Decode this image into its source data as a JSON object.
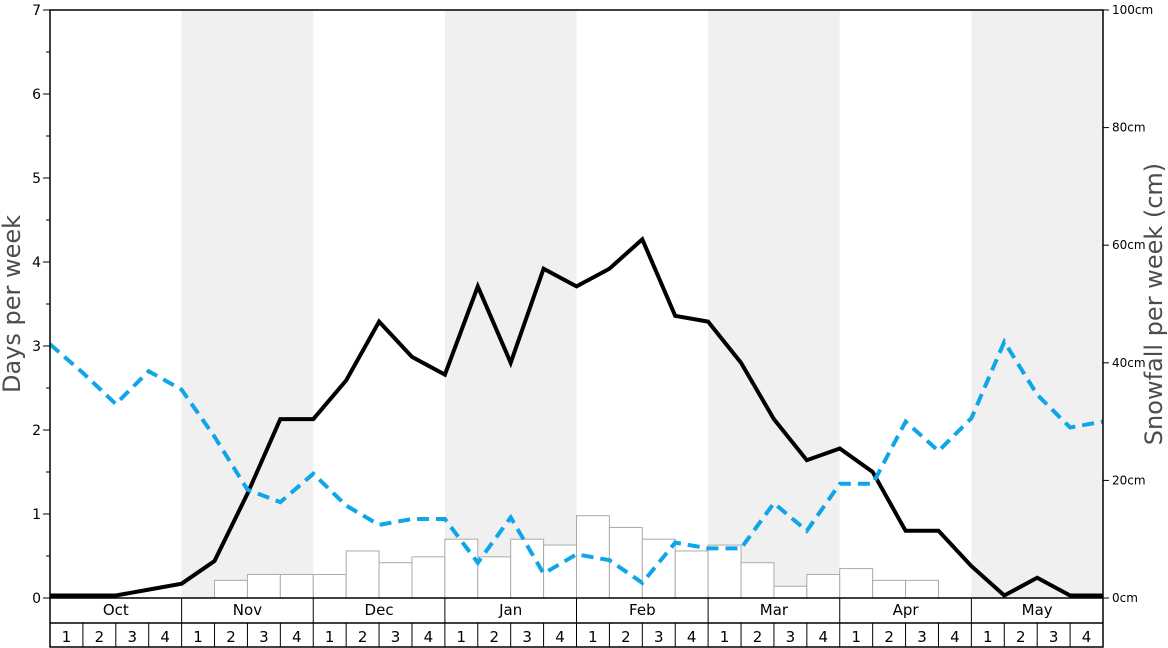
{
  "chart_data": {
    "type": "bar+line",
    "ylabel_left": "Days per week",
    "ylabel_right": "Snowfall per week (cm)",
    "ylim_left": [
      0,
      7
    ],
    "ylim_right": [
      0,
      100
    ],
    "left_ticks": [
      "0",
      "1",
      "2",
      "3",
      "4",
      "5",
      "6",
      "7"
    ],
    "right_ticks": [
      "0cm",
      "20cm",
      "40cm",
      "60cm",
      "80cm",
      "100cm"
    ],
    "months": [
      "Oct",
      "Nov",
      "Dec",
      "Jan",
      "Feb",
      "Mar",
      "Apr",
      "May"
    ],
    "weeks": [
      "1",
      "2",
      "3",
      "4"
    ],
    "shaded_months": [
      "Nov",
      "Jan",
      "Mar",
      "May"
    ],
    "colors": {
      "shade": "#f0f0f0",
      "bar_fill": "#ffffff",
      "bar_stroke": "#aaaaaa",
      "solid_line": "#000000",
      "dashed_line": "#0ea5e9"
    },
    "series": [
      {
        "kind": "bar",
        "axis": "right",
        "values": [
          0,
          0,
          0,
          0,
          0,
          3,
          4,
          4,
          4,
          8,
          6,
          7,
          10,
          7,
          10,
          9,
          14,
          12,
          10,
          8,
          9,
          6,
          2,
          4,
          5,
          3,
          3,
          0,
          0,
          0,
          0,
          0
        ]
      },
      {
        "kind": "line",
        "style": "solid",
        "axis": "left",
        "values": [
          0.03,
          0.03,
          0.03,
          0.1,
          0.17,
          0.44,
          1.24,
          2.13,
          2.13,
          2.59,
          3.29,
          2.87,
          2.66,
          3.71,
          2.8,
          3.92,
          3.71,
          3.92,
          4.27,
          3.36,
          3.29,
          2.8,
          2.13,
          1.64,
          1.78,
          1.5,
          0.8,
          0.8,
          0.38,
          0.03,
          0.24,
          0.03,
          0.03
        ]
      },
      {
        "kind": "line",
        "style": "dashed",
        "axis": "left",
        "values": [
          3.02,
          2.68,
          2.31,
          2.7,
          2.48,
          1.92,
          1.29,
          1.14,
          1.48,
          1.1,
          0.87,
          0.94,
          0.94,
          0.42,
          0.96,
          0.29,
          0.52,
          0.45,
          0.18,
          0.66,
          0.59,
          0.59,
          1.13,
          0.8,
          1.36,
          1.36,
          2.1,
          1.75,
          2.14,
          3.05,
          2.42,
          2.03,
          2.1
        ]
      }
    ]
  }
}
